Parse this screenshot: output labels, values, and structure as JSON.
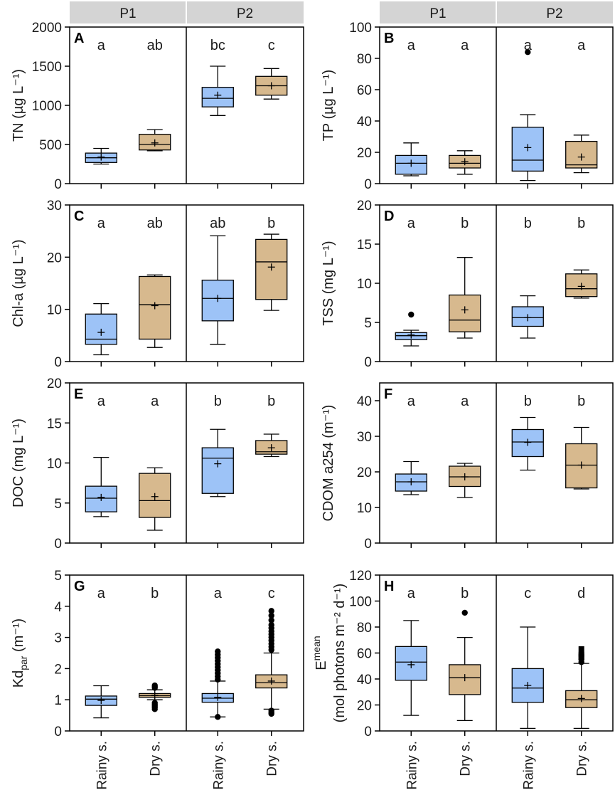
{
  "figure": {
    "period_labels": [
      "P1",
      "P2"
    ],
    "categories": [
      "Rainy s.",
      "Dry s."
    ],
    "colors": {
      "rainy": "#9dc3f7",
      "dry": "#d7b98e",
      "header": "#d4d4d4"
    }
  },
  "chart_data": [
    {
      "type": "box",
      "panel": "A",
      "ylabel": "TN (µg L⁻¹)",
      "ylim": [
        0,
        2000
      ],
      "yticks": [
        0,
        500,
        1000,
        1500,
        2000
      ],
      "groups": [
        {
          "period": "P1",
          "season": "Rainy s.",
          "letter": "a",
          "whisker_low": 250,
          "q1": 270,
          "median": 330,
          "q3": 390,
          "whisker_high": 450,
          "mean": 340,
          "outliers": []
        },
        {
          "period": "P1",
          "season": "Dry s.",
          "letter": "ab",
          "whisker_low": 420,
          "q1": 430,
          "median": 500,
          "q3": 630,
          "whisker_high": 690,
          "mean": 520,
          "outliers": []
        },
        {
          "period": "P2",
          "season": "Rainy s.",
          "letter": "bc",
          "whisker_low": 870,
          "q1": 980,
          "median": 1090,
          "q3": 1230,
          "whisker_high": 1500,
          "mean": 1130,
          "outliers": []
        },
        {
          "period": "P2",
          "season": "Dry s.",
          "letter": "c",
          "whisker_low": 1080,
          "q1": 1130,
          "median": 1250,
          "q3": 1370,
          "whisker_high": 1470,
          "mean": 1250,
          "outliers": []
        }
      ]
    },
    {
      "type": "box",
      "panel": "B",
      "ylabel": "TP (µg L⁻¹)",
      "ylim": [
        0,
        100
      ],
      "yticks": [
        0,
        20,
        40,
        60,
        80,
        100
      ],
      "groups": [
        {
          "period": "P1",
          "season": "Rainy s.",
          "letter": "a",
          "whisker_low": 5,
          "q1": 6,
          "median": 13,
          "q3": 18,
          "whisker_high": 26,
          "mean": 13,
          "outliers": []
        },
        {
          "period": "P1",
          "season": "Dry s.",
          "letter": "a",
          "whisker_low": 6,
          "q1": 10,
          "median": 13,
          "q3": 18,
          "whisker_high": 21,
          "mean": 14,
          "outliers": []
        },
        {
          "period": "P2",
          "season": "Rainy s.",
          "letter": "a",
          "whisker_low": 2,
          "q1": 8,
          "median": 15,
          "q3": 36,
          "whisker_high": 44,
          "mean": 23,
          "outliers": [
            84
          ]
        },
        {
          "period": "P2",
          "season": "Dry s.",
          "letter": "a",
          "whisker_low": 7,
          "q1": 10,
          "median": 12,
          "q3": 27,
          "whisker_high": 31,
          "mean": 17,
          "outliers": []
        }
      ]
    },
    {
      "type": "box",
      "panel": "C",
      "ylabel": "Chl-a (µg L⁻¹)",
      "ylim": [
        0,
        30
      ],
      "yticks": [
        0,
        10,
        20,
        30
      ],
      "groups": [
        {
          "period": "P1",
          "season": "Rainy s.",
          "letter": "a",
          "whisker_low": 1.3,
          "q1": 3.3,
          "median": 4.3,
          "q3": 9.1,
          "whisker_high": 11.1,
          "mean": 5.6,
          "outliers": []
        },
        {
          "period": "P1",
          "season": "Dry s.",
          "letter": "ab",
          "whisker_low": 2.7,
          "q1": 4.3,
          "median": 10.9,
          "q3": 16.3,
          "whisker_high": 16.6,
          "mean": 10.7,
          "outliers": []
        },
        {
          "period": "P2",
          "season": "Rainy s.",
          "letter": "ab",
          "whisker_low": 3.3,
          "q1": 7.8,
          "median": 12.1,
          "q3": 15.6,
          "whisker_high": 24.1,
          "mean": 12.1,
          "outliers": []
        },
        {
          "period": "P2",
          "season": "Dry s.",
          "letter": "b",
          "whisker_low": 9.8,
          "q1": 11.9,
          "median": 19.1,
          "q3": 23.4,
          "whisker_high": 24.4,
          "mean": 18.1,
          "outliers": []
        }
      ]
    },
    {
      "type": "box",
      "panel": "D",
      "ylabel": "TSS (mg L⁻¹)",
      "ylim": [
        0,
        20
      ],
      "yticks": [
        0,
        5,
        10,
        15,
        20
      ],
      "groups": [
        {
          "period": "P1",
          "season": "Rainy s.",
          "letter": "a",
          "whisker_low": 2.0,
          "q1": 2.8,
          "median": 3.3,
          "q3": 3.7,
          "whisker_high": 4.0,
          "mean": 3.4,
          "outliers": [
            6.0
          ]
        },
        {
          "period": "P1",
          "season": "Dry s.",
          "letter": "b",
          "whisker_low": 3.0,
          "q1": 3.8,
          "median": 5.3,
          "q3": 8.5,
          "whisker_high": 13.3,
          "mean": 6.6,
          "outliers": []
        },
        {
          "period": "P2",
          "season": "Rainy s.",
          "letter": "b",
          "whisker_low": 3.0,
          "q1": 4.5,
          "median": 5.6,
          "q3": 7.0,
          "whisker_high": 8.4,
          "mean": 5.6,
          "outliers": []
        },
        {
          "period": "P2",
          "season": "Dry s.",
          "letter": "b",
          "whisker_low": 8.1,
          "q1": 8.3,
          "median": 9.3,
          "q3": 11.2,
          "whisker_high": 11.7,
          "mean": 9.6,
          "outliers": []
        }
      ]
    },
    {
      "type": "box",
      "panel": "E",
      "ylabel": "DOC (mg L⁻¹)",
      "ylim": [
        0,
        20
      ],
      "yticks": [
        0,
        5,
        10,
        15,
        20
      ],
      "groups": [
        {
          "period": "P1",
          "season": "Rainy s.",
          "letter": "a",
          "whisker_low": 3.3,
          "q1": 3.9,
          "median": 5.6,
          "q3": 7.1,
          "whisker_high": 10.7,
          "mean": 5.7,
          "outliers": []
        },
        {
          "period": "P1",
          "season": "Dry s.",
          "letter": "a",
          "whisker_low": 1.6,
          "q1": 3.2,
          "median": 5.3,
          "q3": 8.7,
          "whisker_high": 9.4,
          "mean": 5.8,
          "outliers": []
        },
        {
          "period": "P2",
          "season": "Rainy s.",
          "letter": "b",
          "whisker_low": 5.8,
          "q1": 6.2,
          "median": 10.6,
          "q3": 11.9,
          "whisker_high": 14.2,
          "mean": 9.9,
          "outliers": []
        },
        {
          "period": "P2",
          "season": "Dry s.",
          "letter": "b",
          "whisker_low": 10.8,
          "q1": 11.1,
          "median": 11.4,
          "q3": 12.8,
          "whisker_high": 13.6,
          "mean": 11.9,
          "outliers": []
        }
      ]
    },
    {
      "type": "box",
      "panel": "F",
      "ylabel": "CDOM a254 (m⁻¹)",
      "ylim": [
        0,
        45
      ],
      "yticks": [
        0,
        10,
        20,
        30,
        40
      ],
      "groups": [
        {
          "period": "P1",
          "season": "Rainy s.",
          "letter": "a",
          "whisker_low": 13.6,
          "q1": 14.6,
          "median": 17.2,
          "q3": 19.4,
          "whisker_high": 22.9,
          "mean": 17.2,
          "outliers": []
        },
        {
          "period": "P1",
          "season": "Dry s.",
          "letter": "a",
          "whisker_low": 12.8,
          "q1": 15.9,
          "median": 18.6,
          "q3": 21.6,
          "whisker_high": 22.4,
          "mean": 18.6,
          "outliers": []
        },
        {
          "period": "P2",
          "season": "Rainy s.",
          "letter": "b",
          "whisker_low": 20.5,
          "q1": 24.3,
          "median": 28.4,
          "q3": 31.9,
          "whisker_high": 35.3,
          "mean": 28.3,
          "outliers": []
        },
        {
          "period": "P2",
          "season": "Dry s.",
          "letter": "b",
          "whisker_low": 15.2,
          "q1": 15.5,
          "median": 21.9,
          "q3": 27.9,
          "whisker_high": 32.5,
          "mean": 21.9,
          "outliers": []
        }
      ]
    },
    {
      "type": "box",
      "panel": "G",
      "ylabel": "Kd",
      "ylabel_sub": "par",
      "ylabel_tail": " (m⁻¹)",
      "ylim": [
        0,
        5
      ],
      "yticks": [
        0,
        1,
        2,
        3,
        4,
        5
      ],
      "groups": [
        {
          "period": "P1",
          "season": "Rainy s.",
          "letter": "a",
          "whisker_low": 0.42,
          "q1": 0.82,
          "median": 1.02,
          "q3": 1.12,
          "whisker_high": 1.45,
          "mean": 0.98,
          "outliers": []
        },
        {
          "period": "P1",
          "season": "Dry s.",
          "letter": "b",
          "whisker_low": 1.0,
          "q1": 1.08,
          "median": 1.13,
          "q3": 1.2,
          "whisker_high": 1.32,
          "mean": 1.14,
          "outliers": [
            0.7,
            0.75,
            0.8,
            0.85,
            0.9,
            1.38,
            1.42,
            1.46
          ]
        },
        {
          "period": "P2",
          "season": "Rainy s.",
          "letter": "a",
          "whisker_low": 0.45,
          "q1": 0.92,
          "median": 1.05,
          "q3": 1.2,
          "whisker_high": 1.6,
          "mean": 1.08,
          "outliers": [
            0.45,
            1.65,
            1.75,
            1.85,
            1.95,
            2.05,
            2.15,
            2.25,
            2.35,
            2.45,
            2.55
          ]
        },
        {
          "period": "P2",
          "season": "Dry s.",
          "letter": "c",
          "whisker_low": 0.7,
          "q1": 1.38,
          "median": 1.55,
          "q3": 1.8,
          "whisker_high": 2.5,
          "mean": 1.6,
          "outliers": [
            0.55,
            0.6,
            0.65,
            2.6,
            2.7,
            2.8,
            2.9,
            3.0,
            3.1,
            3.2,
            3.3,
            3.4,
            3.55,
            3.7,
            3.85
          ]
        }
      ]
    },
    {
      "type": "box",
      "panel": "H",
      "ylabel_line1": "E",
      "ylabel_sup": "mean",
      "ylabel_line2": "(mol photons m⁻² d⁻¹)",
      "ylim": [
        0,
        120
      ],
      "yticks": [
        0,
        20,
        40,
        60,
        80,
        100,
        120
      ],
      "groups": [
        {
          "period": "P1",
          "season": "Rainy s.",
          "letter": "a",
          "whisker_low": 12,
          "q1": 39,
          "median": 53,
          "q3": 65,
          "whisker_high": 85,
          "mean": 51,
          "outliers": []
        },
        {
          "period": "P1",
          "season": "Dry s.",
          "letter": "b",
          "whisker_low": 8,
          "q1": 28,
          "median": 41,
          "q3": 51,
          "whisker_high": 72,
          "mean": 41,
          "outliers": [
            91
          ]
        },
        {
          "period": "P2",
          "season": "Rainy s.",
          "letter": "c",
          "whisker_low": 2,
          "q1": 22,
          "median": 33,
          "q3": 48,
          "whisker_high": 80,
          "mean": 35,
          "outliers": []
        },
        {
          "period": "P2",
          "season": "Dry s.",
          "letter": "d",
          "whisker_low": 2,
          "q1": 18,
          "median": 24,
          "q3": 31,
          "whisker_high": 52,
          "mean": 25,
          "outliers": [
            53,
            55,
            56,
            57,
            58,
            59,
            60,
            63
          ]
        }
      ]
    }
  ]
}
